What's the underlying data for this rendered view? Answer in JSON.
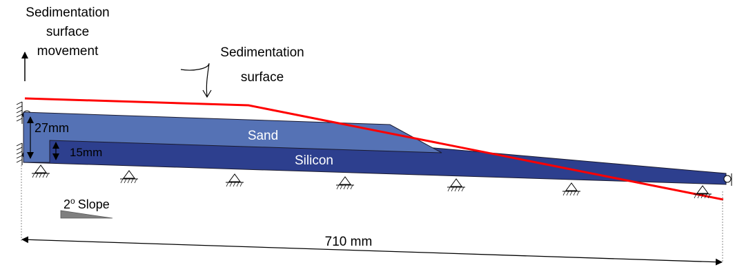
{
  "labels": {
    "movement_line1": "Sedimentation",
    "movement_line2": "surface",
    "movement_line3": "movement",
    "surface_line1": "Sedimentation",
    "surface_line2": "surface",
    "sand": "Sand",
    "silicon": "Silicon",
    "dim_27": "27mm",
    "dim_15": "15mm",
    "slope_value": "2",
    "slope_degree": "o",
    "slope_word": "Slope",
    "length": "710 mm"
  },
  "colors": {
    "sand": "#5572b5",
    "silicon": "#2d3f8e",
    "sedimentation_surface": "#ff0000",
    "outline": "#1a1a2e",
    "slope_wedge": "#7f7f7f"
  }
}
